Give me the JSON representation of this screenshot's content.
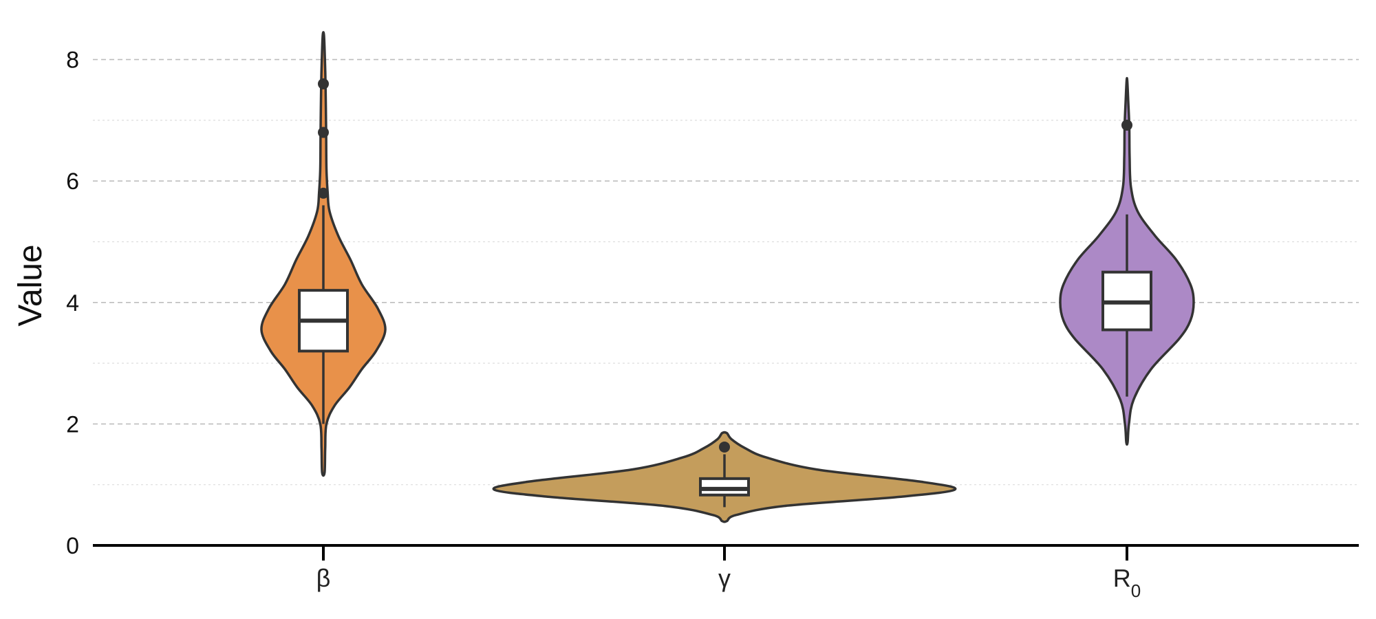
{
  "chart_data": {
    "type": "violin",
    "ylabel": "Value",
    "ylim": [
      0,
      8.6
    ],
    "yticks": [
      "0",
      "2",
      "4",
      "6",
      "8"
    ],
    "grid": {
      "major": true,
      "minor": true,
      "axis": "y"
    },
    "categories": [
      "β",
      "γ",
      "R"
    ],
    "category_subscripts": [
      "",
      "",
      "0"
    ],
    "colors": [
      "#e8914a",
      "#c49d5c",
      "#ac89c6"
    ],
    "series": [
      {
        "category": "β",
        "quartiles": [
          3.2,
          3.7,
          4.2
        ],
        "whiskers": [
          2.0,
          5.6
        ],
        "outliers": [
          5.8,
          6.8,
          7.6
        ],
        "range": [
          1.2,
          8.4
        ],
        "density": [
          [
            1.2,
            0.02
          ],
          [
            1.6,
            0.03
          ],
          [
            2.0,
            0.05
          ],
          [
            2.3,
            0.18
          ],
          [
            2.6,
            0.42
          ],
          [
            2.9,
            0.62
          ],
          [
            3.2,
            0.85
          ],
          [
            3.55,
            1.0
          ],
          [
            3.9,
            0.88
          ],
          [
            4.3,
            0.62
          ],
          [
            4.7,
            0.44
          ],
          [
            5.1,
            0.24
          ],
          [
            5.5,
            0.1
          ],
          [
            5.8,
            0.07
          ],
          [
            6.2,
            0.05
          ],
          [
            6.8,
            0.045
          ],
          [
            7.6,
            0.035
          ],
          [
            8.0,
            0.025
          ],
          [
            8.4,
            0.01
          ]
        ]
      },
      {
        "category": "γ",
        "quartiles": [
          0.83,
          0.93,
          1.1
        ],
        "whiskers": [
          0.63,
          1.5
        ],
        "outliers": [
          1.62
        ],
        "range": [
          0.4,
          1.85
        ],
        "density": [
          [
            0.4,
            0.01
          ],
          [
            0.5,
            0.05
          ],
          [
            0.65,
            0.26
          ],
          [
            0.8,
            0.76
          ],
          [
            0.92,
            1.0
          ],
          [
            1.05,
            0.85
          ],
          [
            1.25,
            0.4
          ],
          [
            1.45,
            0.18
          ],
          [
            1.6,
            0.09
          ],
          [
            1.75,
            0.03
          ],
          [
            1.85,
            0.01
          ]
        ]
      },
      {
        "category": "R0",
        "quartiles": [
          3.55,
          4.0,
          4.5
        ],
        "whiskers": [
          2.45,
          5.45
        ],
        "outliers": [
          6.92
        ],
        "range": [
          1.7,
          7.65
        ],
        "density": [
          [
            1.7,
            0.01
          ],
          [
            2.0,
            0.03
          ],
          [
            2.4,
            0.1
          ],
          [
            2.9,
            0.36
          ],
          [
            3.4,
            0.78
          ],
          [
            3.7,
            0.95
          ],
          [
            4.0,
            1.0
          ],
          [
            4.3,
            0.95
          ],
          [
            4.7,
            0.74
          ],
          [
            5.1,
            0.42
          ],
          [
            5.5,
            0.16
          ],
          [
            5.9,
            0.06
          ],
          [
            6.4,
            0.04
          ],
          [
            6.9,
            0.035
          ],
          [
            7.3,
            0.02
          ],
          [
            7.65,
            0.005
          ]
        ]
      }
    ]
  }
}
